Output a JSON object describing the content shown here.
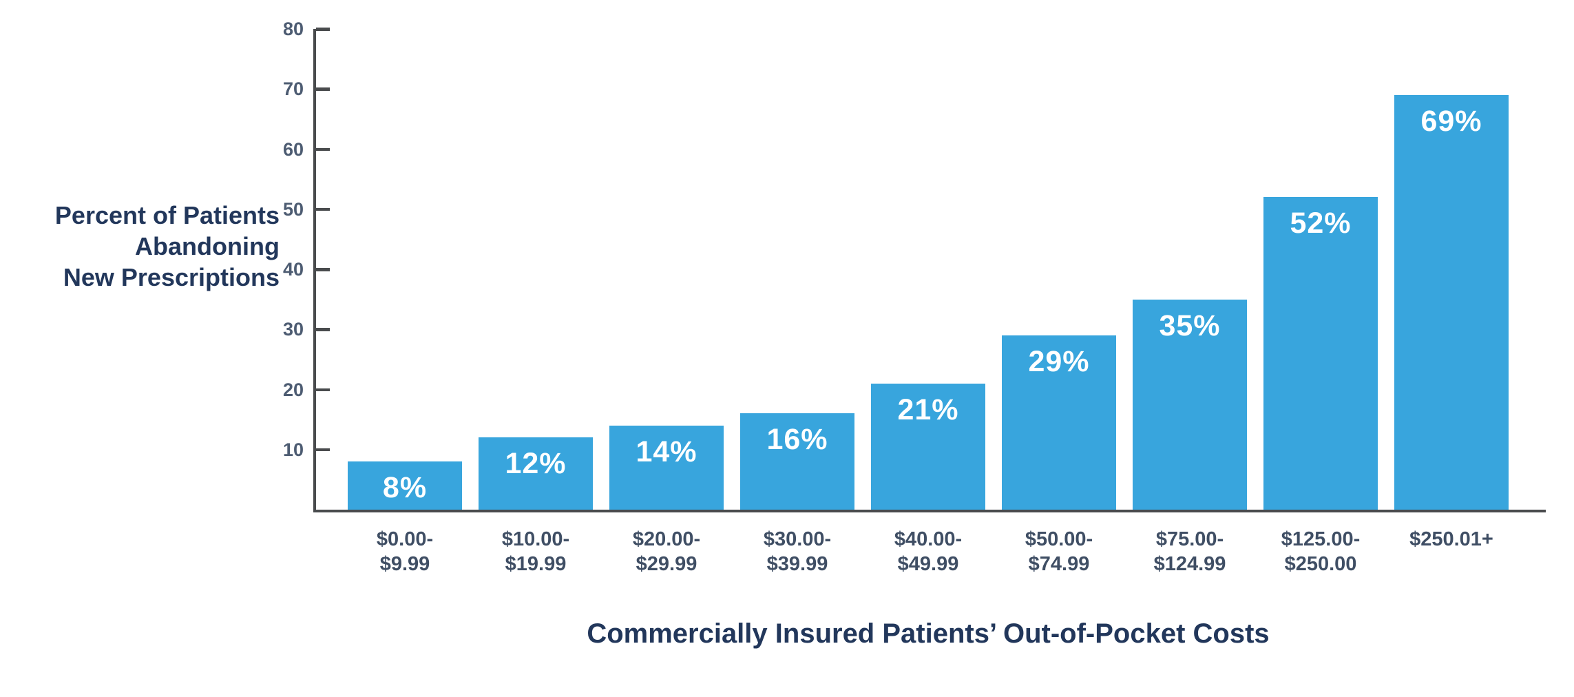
{
  "chart_data": {
    "type": "bar",
    "title": "",
    "xlabel": "Commercially Insured Patients’ Out-of-Pocket Costs",
    "ylabel": "Percent of Patients Abandoning New Prescriptions",
    "ylabel_lines": [
      "Percent of Patients",
      "Abandoning",
      "New Prescriptions"
    ],
    "categories": [
      [
        "$0.00-",
        "$9.99"
      ],
      [
        "$10.00-",
        "$19.99"
      ],
      [
        "$20.00-",
        "$29.99"
      ],
      [
        "$30.00-",
        "$39.99"
      ],
      [
        "$40.00-",
        "$49.99"
      ],
      [
        "$50.00-",
        "$74.99"
      ],
      [
        "$75.00-",
        "$124.99"
      ],
      [
        "$125.00-",
        "$250.00"
      ],
      [
        "$250.01+"
      ]
    ],
    "values": [
      8,
      12,
      14,
      16,
      21,
      29,
      35,
      52,
      69
    ],
    "bar_labels": [
      "8%",
      "12%",
      "14%",
      "16%",
      "21%",
      "29%",
      "35%",
      "52%",
      "69%"
    ],
    "yticks": [
      10,
      20,
      30,
      40,
      50,
      60,
      70,
      80
    ],
    "ylim": [
      0,
      80
    ],
    "grid": false,
    "legend": "none",
    "colors": {
      "bar": "#38A5DD",
      "bar_label": "#FFFFFF",
      "axis": "#494B4D",
      "tick_label": "#4D5C72",
      "category_label": "#3F4E64",
      "axis_title": "#22375B"
    }
  }
}
